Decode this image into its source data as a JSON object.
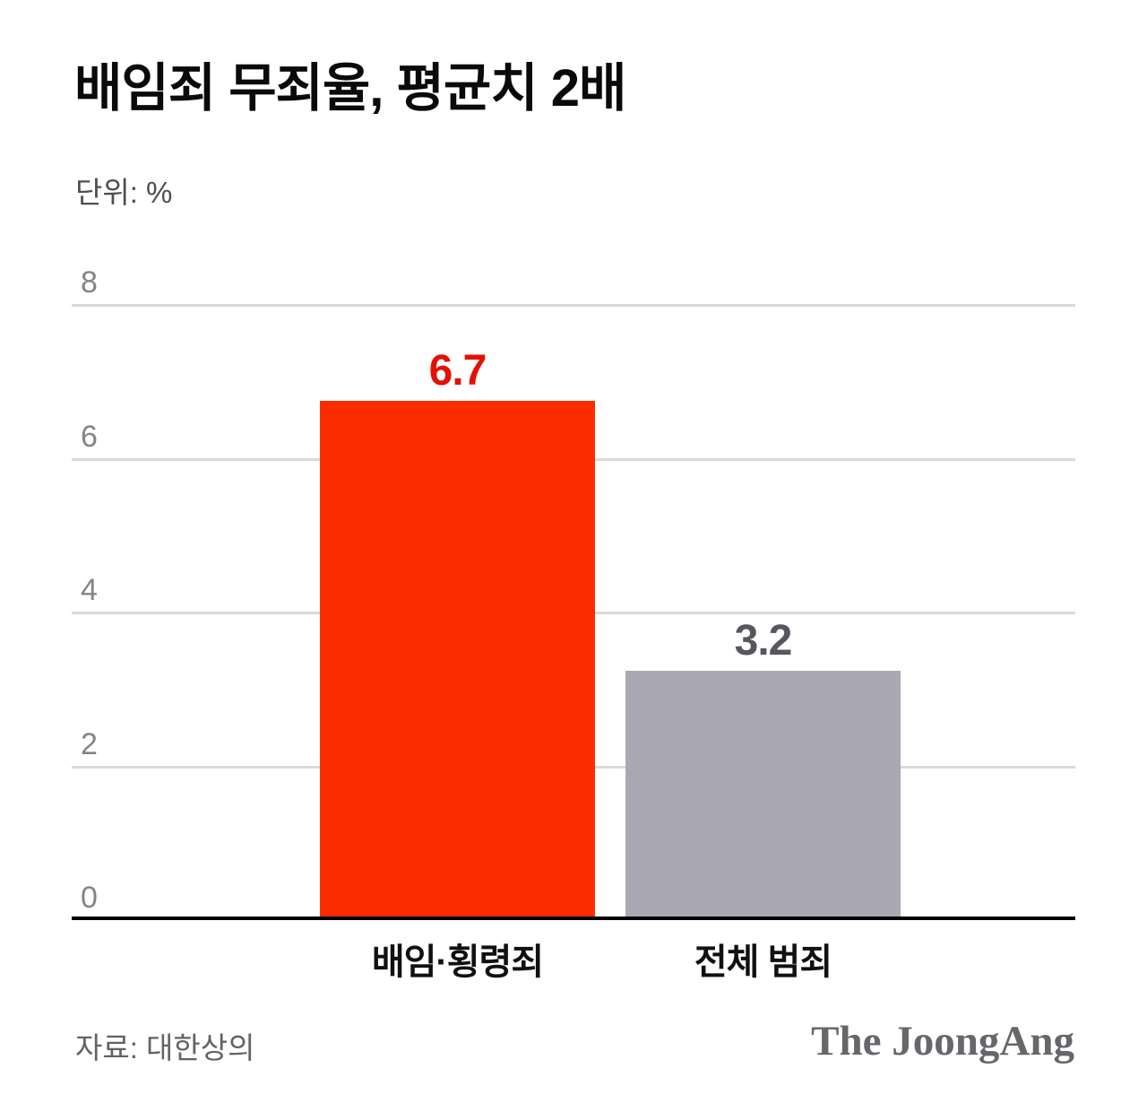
{
  "header": {
    "title": "배임죄 무죄율, 평균치 2배",
    "unit_label": "단위: %"
  },
  "chart_data": {
    "type": "bar",
    "title": "배임죄 무죄율, 평균치 2배",
    "unit": "%",
    "categories": [
      "배임·횡령죄",
      "전체 범죄"
    ],
    "values": [
      6.7,
      3.2
    ],
    "labels": [
      "6.7",
      "3.2"
    ],
    "bar_colors": [
      "#fb2d00",
      "#a9a8b2"
    ],
    "value_label_colors": [
      "#e31105",
      "#57565d"
    ],
    "yticks": [
      8,
      6,
      4,
      2,
      0
    ],
    "ylim": [
      0,
      8
    ],
    "grid": true,
    "gridline_color": "#d9d9d9",
    "axis_color": "#000000",
    "legend": "none"
  },
  "footer": {
    "source": "자료: 대한상의",
    "logo": "The JoongAng"
  }
}
